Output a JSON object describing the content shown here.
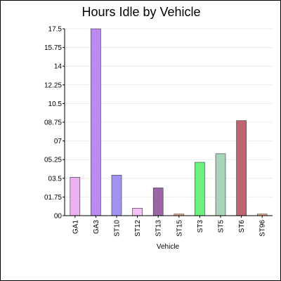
{
  "chart_data": {
    "type": "bar",
    "title": "Hours Idle by Vehicle",
    "xlabel": "Vehicle",
    "ylabel": "",
    "categories": [
      "GA1",
      "GA3",
      "ST10",
      "ST12",
      "ST13",
      "ST15",
      "ST3",
      "ST5",
      "ST6",
      "ST96"
    ],
    "values": [
      3.6,
      17.5,
      3.8,
      0.7,
      2.6,
      0.15,
      5.0,
      5.8,
      8.9,
      0.15
    ],
    "colors": [
      "#eab0f0",
      "#b98bef",
      "#a293f0",
      "#f5bff5",
      "#9b64a6",
      "#f0a080",
      "#6ef07e",
      "#a8d4b8",
      "#bf6470",
      "#f0a080"
    ],
    "ylim": [
      0,
      17.5
    ],
    "y_ticks": [
      "00",
      "01.75",
      "03.5",
      "05.25",
      "07",
      "08.75",
      "10.5",
      "12.25",
      "14",
      "15.75",
      "17.5"
    ],
    "grid": true,
    "legend": "none"
  }
}
